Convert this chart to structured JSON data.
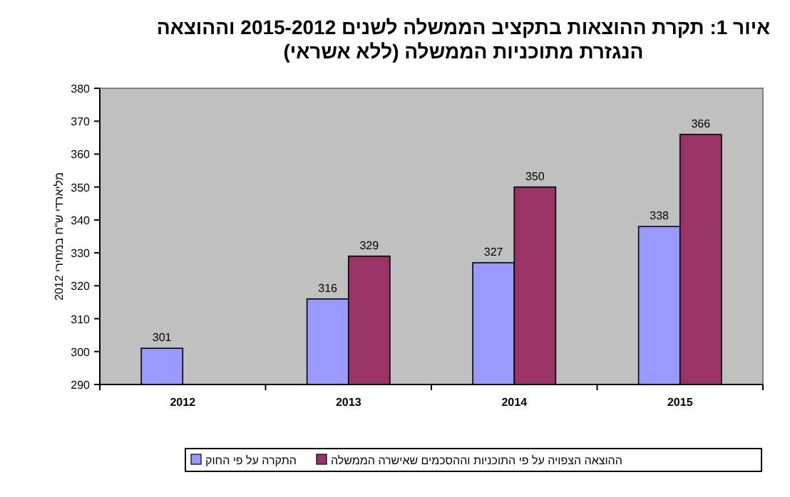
{
  "chart_data": {
    "type": "bar",
    "title": "איור 1:  תקרת ההוצאות בתקציב הממשלה לשנים 2015-2012 וההוצאה\nהנגזרת מתוכניות הממשלה (ללא אשראי)",
    "ylabel": "מליארדי ש\"ח במחירי 2012",
    "categories": [
      "2012",
      "2013",
      "2014",
      "2015"
    ],
    "series": [
      {
        "name": "התקרה על פי החוק",
        "color": "#9999ff",
        "values": [
          301,
          316,
          327,
          338
        ]
      },
      {
        "name": "ההוצאה הצפויה על פי התוכניות וההסכמים שאישרה הממשלה",
        "color": "#993366",
        "values": [
          null,
          329,
          350,
          366
        ]
      }
    ],
    "ylim": [
      290,
      380
    ],
    "yticks": [
      290,
      300,
      310,
      320,
      330,
      340,
      350,
      360,
      370,
      380
    ],
    "data_labels": true,
    "legend": "bottom",
    "grid": false
  }
}
